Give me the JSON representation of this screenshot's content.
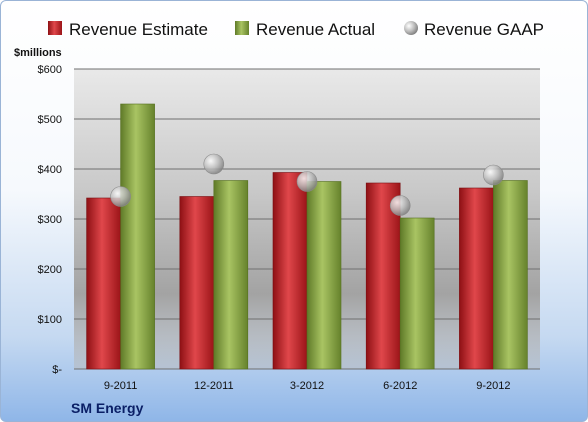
{
  "company": "SM Energy",
  "y_unit": "$millions",
  "chart_data": {
    "type": "bar",
    "title": "",
    "xlabel": "",
    "ylabel": "$millions",
    "categories": [
      "9-2011",
      "12-2011",
      "3-2012",
      "6-2012",
      "9-2012"
    ],
    "ylim": [
      0,
      600
    ],
    "yticks": [
      0,
      100,
      200,
      300,
      400,
      500,
      600
    ],
    "ytick_labels": [
      "$-",
      "$100",
      "$200",
      "$300",
      "$400",
      "$500",
      "$600"
    ],
    "grid": true,
    "legend": "top",
    "series": [
      {
        "name": "Revenue Estimate",
        "kind": "bar",
        "color": "#c8282e",
        "values": [
          342,
          345,
          393,
          372,
          362
        ]
      },
      {
        "name": "Revenue Actual",
        "kind": "bar",
        "color": "#8faa4c",
        "values": [
          530,
          377,
          375,
          302,
          377
        ]
      },
      {
        "name": "Revenue GAAP",
        "kind": "marker",
        "color": "#b8b8b8",
        "values": [
          345,
          410,
          375,
          327,
          388
        ]
      }
    ]
  }
}
